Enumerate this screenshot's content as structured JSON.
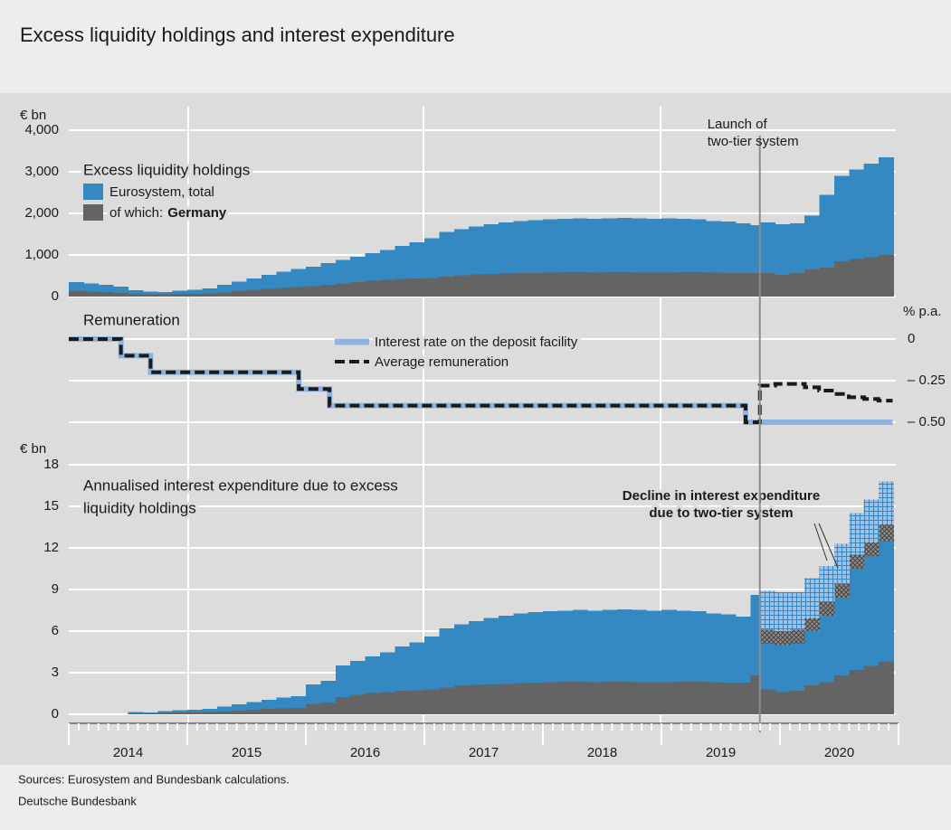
{
  "header": {
    "title": "Excess liquidity holdings and interest expenditure"
  },
  "footer": {
    "sources": "Sources: Eurosystem and Bundesbank calculations.",
    "publisher": "Deutsche Bundesbank"
  },
  "chart_data": [
    {
      "type": "area",
      "unit_label": "€ bn",
      "legend_title": "Excess liquidity holdings",
      "legend_note": "of which:",
      "xlim": [
        2014,
        2021
      ],
      "ylim": [
        0,
        4000
      ],
      "yticks": [
        0,
        {
          "value": 1000,
          "label": "1,000"
        },
        {
          "value": 2000,
          "label": "2,000"
        },
        {
          "value": 3000,
          "label": "3,000"
        },
        {
          "value": 4000,
          "label": "4,000"
        }
      ],
      "grid": true,
      "annotation": {
        "text": [
          "Launch of",
          "two-tier system"
        ],
        "x": 2019.83
      },
      "x": [
        2014.0,
        2014.125,
        2014.25,
        2014.375,
        2014.5,
        2014.625,
        2014.75,
        2014.875,
        2015.0,
        2015.125,
        2015.25,
        2015.375,
        2015.5,
        2015.625,
        2015.75,
        2015.875,
        2016.0,
        2016.125,
        2016.25,
        2016.375,
        2016.5,
        2016.625,
        2016.75,
        2016.875,
        2017.0,
        2017.125,
        2017.25,
        2017.375,
        2017.5,
        2017.625,
        2017.75,
        2017.875,
        2018.0,
        2018.125,
        2018.25,
        2018.375,
        2018.5,
        2018.625,
        2018.75,
        2018.875,
        2019.0,
        2019.125,
        2019.25,
        2019.375,
        2019.5,
        2019.625,
        2019.75,
        2019.833,
        2019.958,
        2020.083,
        2020.208,
        2020.333,
        2020.458,
        2020.583,
        2020.708,
        2020.833
      ],
      "series": [
        {
          "name": "Eurosystem, total",
          "color": "#3589c3",
          "values": [
            350,
            320,
            280,
            240,
            150,
            120,
            110,
            140,
            160,
            200,
            280,
            360,
            440,
            520,
            600,
            660,
            720,
            800,
            880,
            960,
            1040,
            1120,
            1220,
            1300,
            1400,
            1550,
            1620,
            1680,
            1740,
            1780,
            1820,
            1840,
            1860,
            1870,
            1880,
            1870,
            1880,
            1890,
            1880,
            1870,
            1880,
            1870,
            1860,
            1820,
            1800,
            1760,
            1720,
            1780,
            1740,
            1760,
            1950,
            2450,
            2900,
            3050,
            3200,
            3350
          ]
        },
        {
          "name": "Germany",
          "color": "#646464",
          "overlay": true,
          "values": [
            130,
            120,
            110,
            90,
            60,
            50,
            50,
            60,
            70,
            80,
            100,
            130,
            160,
            190,
            210,
            230,
            250,
            280,
            310,
            350,
            380,
            400,
            420,
            430,
            450,
            480,
            510,
            530,
            540,
            550,
            560,
            570,
            580,
            590,
            590,
            580,
            590,
            590,
            580,
            580,
            580,
            590,
            590,
            580,
            570,
            570,
            560,
            560,
            520,
            560,
            650,
            700,
            850,
            900,
            950,
            1000
          ]
        }
      ]
    },
    {
      "type": "line",
      "title": "Remuneration",
      "unit_label": "% p.a.",
      "xlim": [
        2014,
        2021
      ],
      "ylim": [
        -0.5,
        0
      ],
      "yticks": [
        0,
        {
          "value": -0.25,
          "label": "– 0.25"
        },
        {
          "value": -0.5,
          "label": "– 0.50"
        }
      ],
      "grid": true,
      "x": [
        2014.0,
        2014.44,
        2014.69,
        2015.94,
        2016.2,
        2019.71,
        2019.83,
        2019.96,
        2020.08,
        2020.21,
        2020.33,
        2020.46,
        2020.58,
        2020.71,
        2020.83,
        2020.95
      ],
      "series": [
        {
          "name": "Interest rate on the deposit facility",
          "color": "#8fb3e0",
          "values": [
            0,
            -0.1,
            -0.2,
            -0.3,
            -0.4,
            -0.5,
            -0.5,
            -0.5,
            -0.5,
            -0.5,
            -0.5,
            -0.5,
            -0.5,
            -0.5,
            -0.5,
            -0.5
          ]
        },
        {
          "name": "Average remuneration",
          "color": "#1a1a1a",
          "dashed": true,
          "values": [
            0,
            -0.1,
            -0.2,
            -0.3,
            -0.4,
            -0.5,
            -0.28,
            -0.27,
            -0.27,
            -0.29,
            -0.31,
            -0.33,
            -0.35,
            -0.36,
            -0.37,
            -0.37
          ]
        }
      ]
    },
    {
      "type": "bar",
      "title": [
        "Annualised interest expenditure due to excess",
        "liquidity holdings"
      ],
      "unit_label": "€ bn",
      "annotation": [
        "Decline in interest expenditure",
        "due to two-tier system"
      ],
      "xlim": [
        2014,
        2021
      ],
      "ylim": [
        0,
        18
      ],
      "yticks": [
        0,
        3,
        6,
        9,
        12,
        15,
        18
      ],
      "grid": true,
      "xticks": [
        {
          "value": 2014.5,
          "label": "2014"
        },
        {
          "value": 2015.5,
          "label": "2015"
        },
        {
          "value": 2016.5,
          "label": "2016"
        },
        {
          "value": 2017.5,
          "label": "2017"
        },
        {
          "value": 2018.5,
          "label": "2018"
        },
        {
          "value": 2019.5,
          "label": "2019"
        },
        {
          "value": 2020.5,
          "label": "2020"
        }
      ],
      "x": [
        2014.0,
        2014.125,
        2014.25,
        2014.375,
        2014.5,
        2014.625,
        2014.75,
        2014.875,
        2015.0,
        2015.125,
        2015.25,
        2015.375,
        2015.5,
        2015.625,
        2015.75,
        2015.875,
        2016.0,
        2016.125,
        2016.25,
        2016.375,
        2016.5,
        2016.625,
        2016.75,
        2016.875,
        2017.0,
        2017.125,
        2017.25,
        2017.375,
        2017.5,
        2017.625,
        2017.75,
        2017.875,
        2018.0,
        2018.125,
        2018.25,
        2018.375,
        2018.5,
        2018.625,
        2018.75,
        2018.875,
        2019.0,
        2019.125,
        2019.25,
        2019.375,
        2019.5,
        2019.625,
        2019.75,
        2019.833,
        2019.958,
        2020.083,
        2020.208,
        2020.333,
        2020.458,
        2020.583,
        2020.708,
        2020.833
      ],
      "series": [
        {
          "color": "#3589c3",
          "values": [
            0,
            0,
            0,
            0,
            0.15,
            0.12,
            0.22,
            0.28,
            0.32,
            0.4,
            0.56,
            0.72,
            0.88,
            1.04,
            1.2,
            1.32,
            2.16,
            2.4,
            3.52,
            3.84,
            4.16,
            4.48,
            4.88,
            5.2,
            5.6,
            6.2,
            6.48,
            6.72,
            6.96,
            7.12,
            7.28,
            7.36,
            7.44,
            7.48,
            7.52,
            7.48,
            7.52,
            7.56,
            7.52,
            7.48,
            7.52,
            7.48,
            7.44,
            7.28,
            7.2,
            7.04,
            8.6,
            5.1,
            5.0,
            5.1,
            6.0,
            7.1,
            8.4,
            10.5,
            11.4,
            12.5
          ]
        },
        {
          "color": "#646464",
          "overlay": true,
          "values": [
            0,
            0,
            0,
            0,
            0.06,
            0.05,
            0.1,
            0.12,
            0.14,
            0.16,
            0.2,
            0.26,
            0.32,
            0.38,
            0.42,
            0.46,
            0.75,
            0.84,
            1.24,
            1.4,
            1.52,
            1.6,
            1.68,
            1.72,
            1.8,
            1.92,
            2.04,
            2.12,
            2.16,
            2.2,
            2.24,
            2.28,
            2.32,
            2.36,
            2.36,
            2.32,
            2.36,
            2.36,
            2.32,
            2.32,
            2.32,
            2.36,
            2.36,
            2.32,
            2.28,
            2.28,
            2.8,
            1.8,
            1.6,
            1.7,
            2.1,
            2.3,
            2.8,
            3.2,
            3.5,
            3.8
          ]
        },
        {
          "color": "#8c8c8c",
          "pattern": "cross",
          "values": [
            null,
            null,
            null,
            null,
            null,
            null,
            null,
            null,
            null,
            null,
            null,
            null,
            null,
            null,
            null,
            null,
            null,
            null,
            null,
            null,
            null,
            null,
            null,
            null,
            null,
            null,
            null,
            null,
            null,
            null,
            null,
            null,
            null,
            null,
            null,
            null,
            null,
            null,
            null,
            null,
            null,
            null,
            null,
            null,
            null,
            null,
            null,
            1.0,
            1.0,
            1.0,
            0.9,
            1.0,
            1.0,
            1.0,
            1.0,
            1.2
          ]
        },
        {
          "color": "#9cc2ea",
          "pattern": "grid",
          "values": [
            null,
            null,
            null,
            null,
            null,
            null,
            null,
            null,
            null,
            null,
            null,
            null,
            null,
            null,
            null,
            null,
            null,
            null,
            null,
            null,
            null,
            null,
            null,
            null,
            null,
            null,
            null,
            null,
            null,
            null,
            null,
            null,
            null,
            null,
            null,
            null,
            null,
            null,
            null,
            null,
            null,
            null,
            null,
            null,
            null,
            null,
            null,
            2.8,
            2.8,
            2.7,
            2.9,
            2.6,
            2.9,
            3.0,
            3.1,
            3.1
          ]
        }
      ]
    }
  ]
}
